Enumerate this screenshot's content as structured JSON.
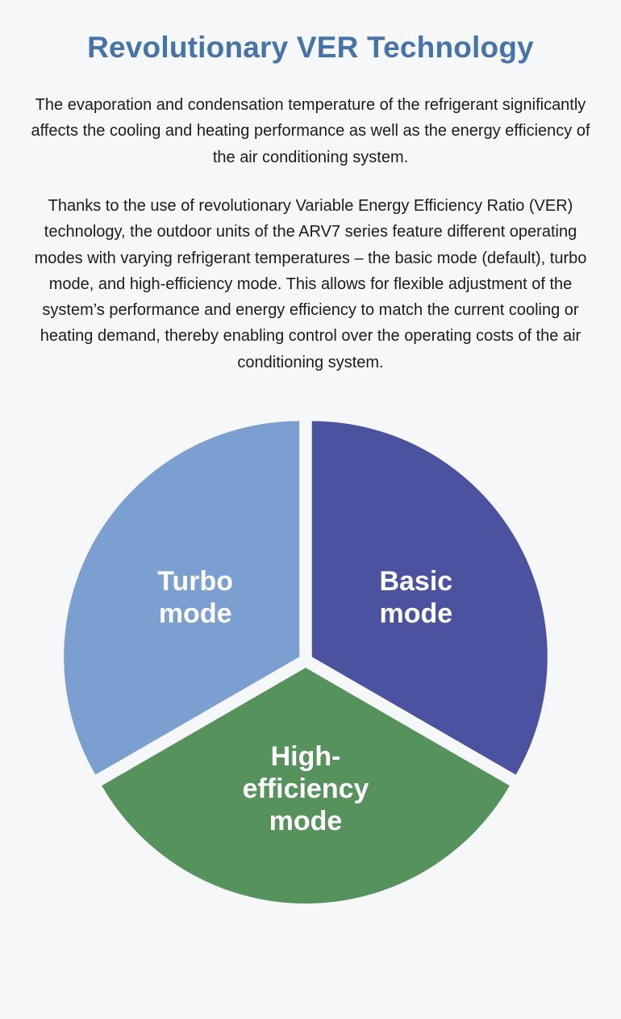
{
  "header": {
    "title": "Revolutionary VER Technology"
  },
  "content": {
    "paragraph_1": "The evaporation and condensation temperature of the refrigerant significantly affects the cooling and heating performance as well as the energy efficiency of the air conditioning system.",
    "paragraph_2": "Thanks to the use of revolutionary Variable Energy Efficiency Ratio (VER) technology, the outdoor units of the ARV7 series feature different operating modes with varying refrigerant temperatures – the basic mode (default), turbo mode, and high-efficiency mode. This allows for flexible adjustment of the system’s performance and energy efficiency to match the current cooling or heating demand, thereby enabling control over the operating costs of the air conditioning system."
  },
  "chart_data": {
    "type": "pie",
    "title": "",
    "slices": [
      {
        "label_lines": [
          "Basic",
          "mode"
        ],
        "value": 1,
        "color": "#4b52a0"
      },
      {
        "label_lines": [
          "High-",
          "efficiency",
          "mode"
        ],
        "value": 1,
        "color": "#56925c"
      },
      {
        "label_lines": [
          "Turbo",
          "mode"
        ],
        "value": 1,
        "color": "#7b9fd1"
      }
    ],
    "legend": "none"
  }
}
